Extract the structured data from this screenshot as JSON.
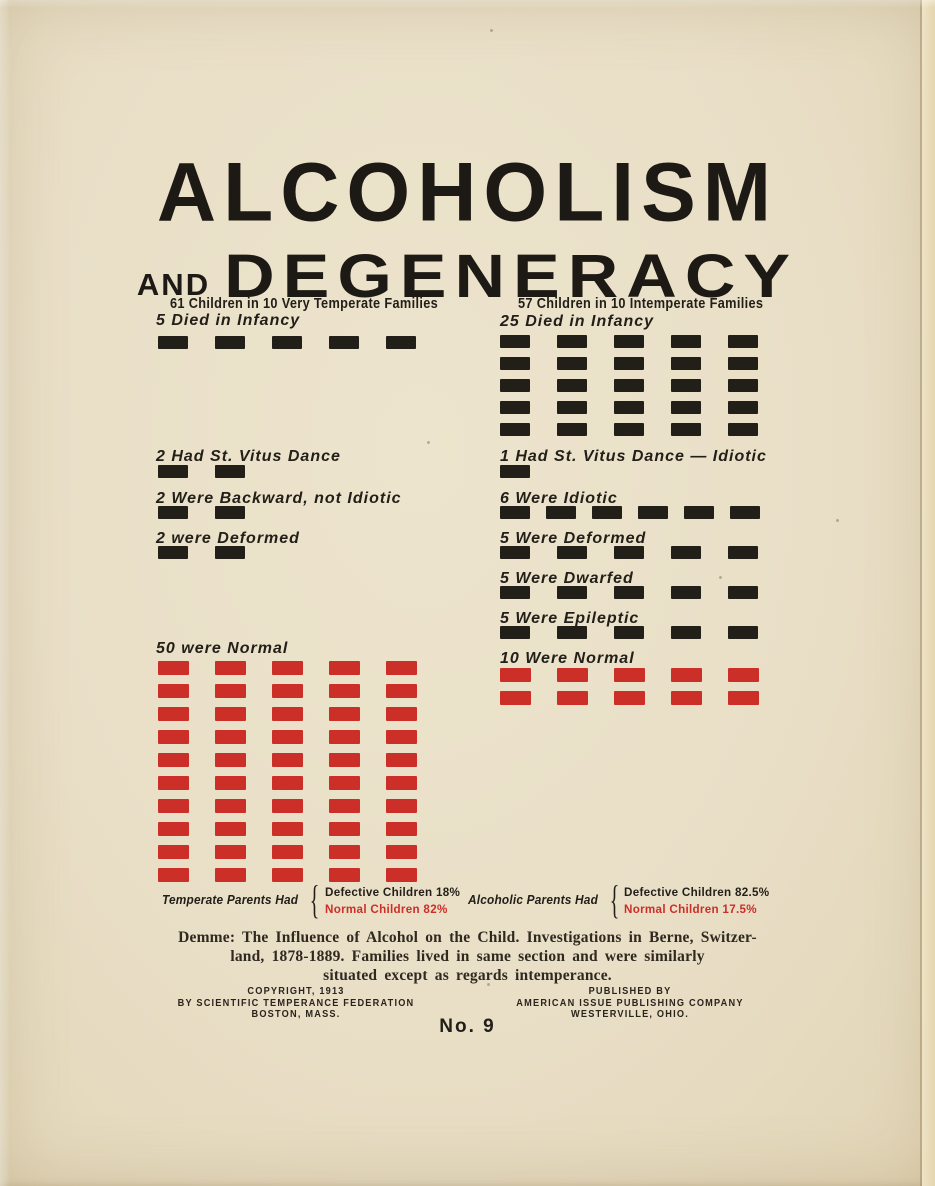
{
  "page": {
    "title_line1": "ALCOHOLISM",
    "title_word_and": "AND",
    "title_line2": "DEGENERACY",
    "number_label": "No. 9",
    "brace_glyph": "{"
  },
  "colors": {
    "paper": "#e9dfc7",
    "ink": "#221e18",
    "red": "#cc2f27"
  },
  "chart_data": {
    "type": "bar",
    "subtype": "isotype unit pictograph (1 block = 1 child)",
    "title": "ALCOHOLISM AND DEGENERACY",
    "legend_position": "none",
    "groups": [
      {
        "header": "61 Children in 10 Very Temperate Families",
        "total_children": 61,
        "rows": [
          {
            "label": "5 Died in Infancy",
            "count": 5,
            "color": "black"
          },
          {
            "label": "2 Had St. Vitus Dance",
            "count": 2,
            "color": "black"
          },
          {
            "label": "2 Were Backward, not Idiotic",
            "count": 2,
            "color": "black"
          },
          {
            "label": "2 were Deformed",
            "count": 2,
            "color": "black"
          },
          {
            "label": "50 were Normal",
            "count": 50,
            "color": "red"
          }
        ]
      },
      {
        "header": "57 Children in 10 Intemperate Families",
        "total_children": 57,
        "rows": [
          {
            "label": "25 Died in Infancy",
            "count": 25,
            "color": "black"
          },
          {
            "label": "1 Had St. Vitus Dance — Idiotic",
            "count": 1,
            "color": "black"
          },
          {
            "label": "6 Were Idiotic",
            "count": 6,
            "color": "black"
          },
          {
            "label": "5 Were Deformed",
            "count": 5,
            "color": "black"
          },
          {
            "label": "5 Were Dwarfed",
            "count": 5,
            "color": "black"
          },
          {
            "label": "5 Were Epileptic",
            "count": 5,
            "color": "black"
          },
          {
            "label": "10 Were Normal",
            "count": 10,
            "color": "red"
          }
        ]
      }
    ],
    "summary": [
      {
        "prefix": "Temperate Parents Had",
        "defective_label": "Defective Children 18%",
        "defective_pct": 18,
        "normal_label": "Normal Children 82%",
        "normal_pct": 82
      },
      {
        "prefix": "Alcoholic Parents Had",
        "defective_label": "Defective Children 82.5%",
        "defective_pct": 82.5,
        "normal_label": "Normal Children 17.5%",
        "normal_pct": 17.5
      }
    ]
  },
  "caption": {
    "lines": [
      "Demme:  The Influence of Alcohol on the Child.  Investigations in Berne, Switzer-",
      "land, 1878-1889.  Families lived in same section and were similarly",
      "situated except as regards intemperance."
    ]
  },
  "footer": {
    "copyright_lines": [
      "COPYRIGHT, 1913",
      "BY SCIENTIFIC TEMPERANCE FEDERATION",
      "BOSTON, MASS."
    ],
    "publisher_lines": [
      "PUBLISHED BY",
      "AMERICAN ISSUE PUBLISHING COMPANY",
      "WESTERVILLE, OHIO."
    ]
  }
}
